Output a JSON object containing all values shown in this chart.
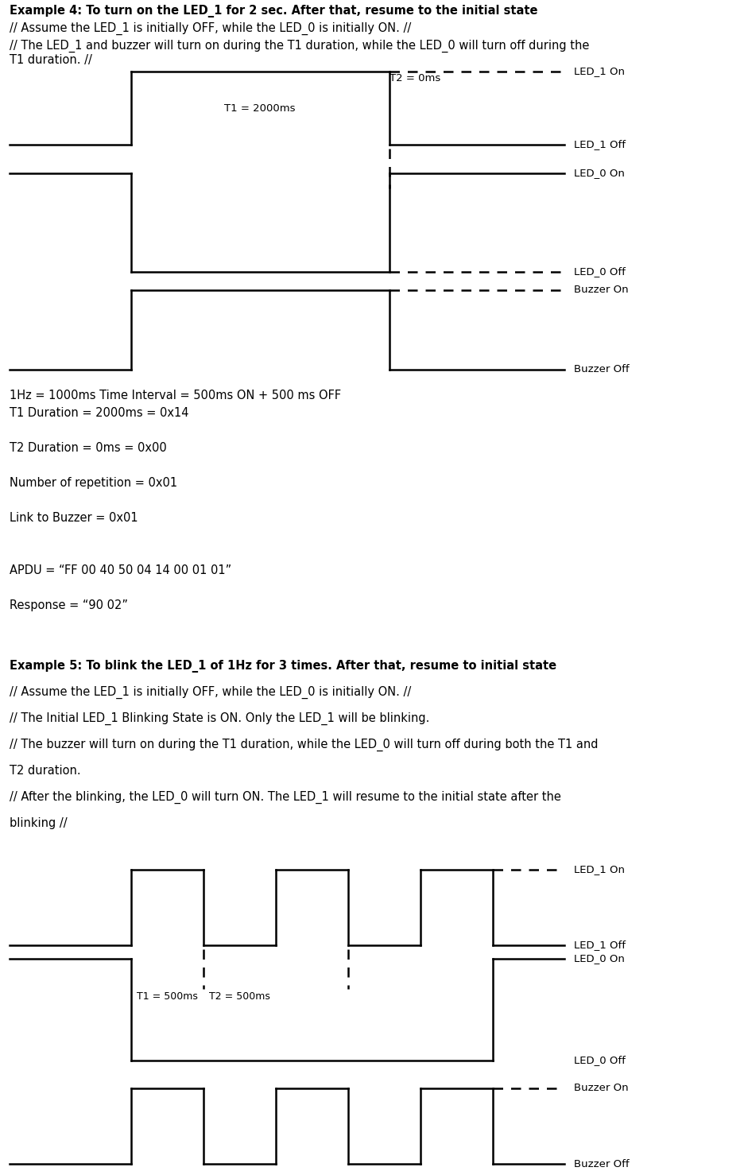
{
  "bg_color": "#ffffff",
  "lc": "#000000",
  "ex4_title_bold": "Example 4: To turn on the LED_1 for 2 sec. After that, resume to the initial state",
  "ex4_line1": "// Assume the LED_1 is initially OFF, while the LED_0 is initially ON. //",
  "ex4_line2a": "// The LED_1 and buzzer will turn on during the T1 duration, while the LED_0 will turn off during the",
  "ex4_line2b": "T1 duration. //",
  "params_line1": "1Hz = 1000ms Time Interval = 500ms ON + 500 ms OFF",
  "params_line2": "T1 Duration = 2000ms = 0x14",
  "params_line3": "T2 Duration = 0ms = 0x00",
  "params_line4": "Number of repetition = 0x01",
  "params_line5": "Link to Buzzer = 0x01",
  "apdu_line": "APDU = “FF 00 40 50 04 14 00 01 01”",
  "response_line": "Response = “90 02”",
  "ex5_title_bold": "Example 5: To blink the LED_1 of 1Hz for 3 times. After that, resume to initial state",
  "ex5_line1": "// Assume the LED_1 is initially OFF, while the LED_0 is initially ON. //",
  "ex5_line2": "// The Initial LED_1 Blinking State is ON. Only the LED_1 will be blinking.",
  "ex5_line3a": "// The buzzer will turn on during the T1 duration, while the LED_0 will turn off during both the T1 and",
  "ex5_line3b": "T2 duration.",
  "ex5_line4a": "// After the blinking, the LED_0 will turn ON. The LED_1 will resume to the initial state after the",
  "ex5_line4b": "blinking //",
  "t1_label_ex4": "T1 = 2000ms",
  "t2_label_ex4": "T2 = 0ms",
  "t1_label_ex5": "T1 = 500ms",
  "t2_label_ex5": "T2 = 500ms",
  "label_led1_on": "LED_1 On",
  "label_led1_off": "LED_1 Off",
  "label_led0_on": "LED_0 On",
  "label_led0_off": "LED_0 Off",
  "label_buz_on": "Buzzer On",
  "label_buz_off": "Buzzer Off"
}
